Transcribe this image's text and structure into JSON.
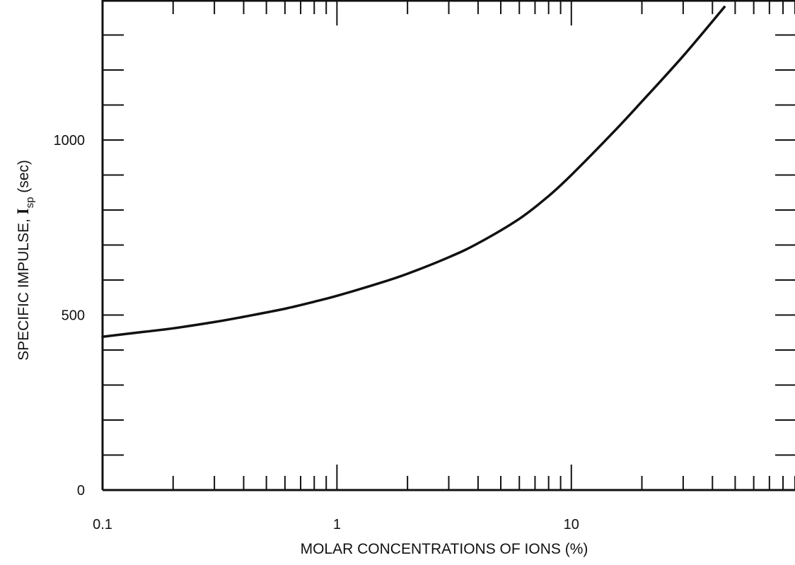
{
  "chart_data": {
    "type": "line",
    "xlabel": "MOLAR CONCENTRATIONS OF IONS (%)",
    "ylabel": {
      "prefix": "SPECIFIC IMPULSE, ",
      "symbol": "I",
      "subscript": "sp",
      "suffix": " (sec)"
    },
    "x_scale": "log",
    "xlim": [
      0.1,
      90
    ],
    "ylim": [
      0,
      1400
    ],
    "x_ticks": [
      {
        "value": 0.1,
        "label": "0.1"
      },
      {
        "value": 1,
        "label": "1"
      },
      {
        "value": 10,
        "label": "10"
      }
    ],
    "y_ticks": [
      {
        "value": 0,
        "label": "0"
      },
      {
        "value": 500,
        "label": "500"
      },
      {
        "value": 1000,
        "label": "1000"
      }
    ],
    "y_minor_step": 100,
    "grid": false,
    "series": [
      {
        "x": [
          0.1,
          0.15,
          0.2,
          0.3,
          0.4,
          0.6,
          0.8,
          1,
          1.5,
          2,
          3,
          4,
          6,
          8,
          10,
          15,
          20,
          30,
          45
        ],
        "y": [
          438,
          452,
          462,
          480,
          495,
          518,
          538,
          555,
          590,
          618,
          665,
          705,
          775,
          840,
          900,
          1020,
          1110,
          1240,
          1380
        ]
      }
    ]
  },
  "colors": {
    "axis": "#111111",
    "line": "#111111",
    "background": "#ffffff"
  }
}
